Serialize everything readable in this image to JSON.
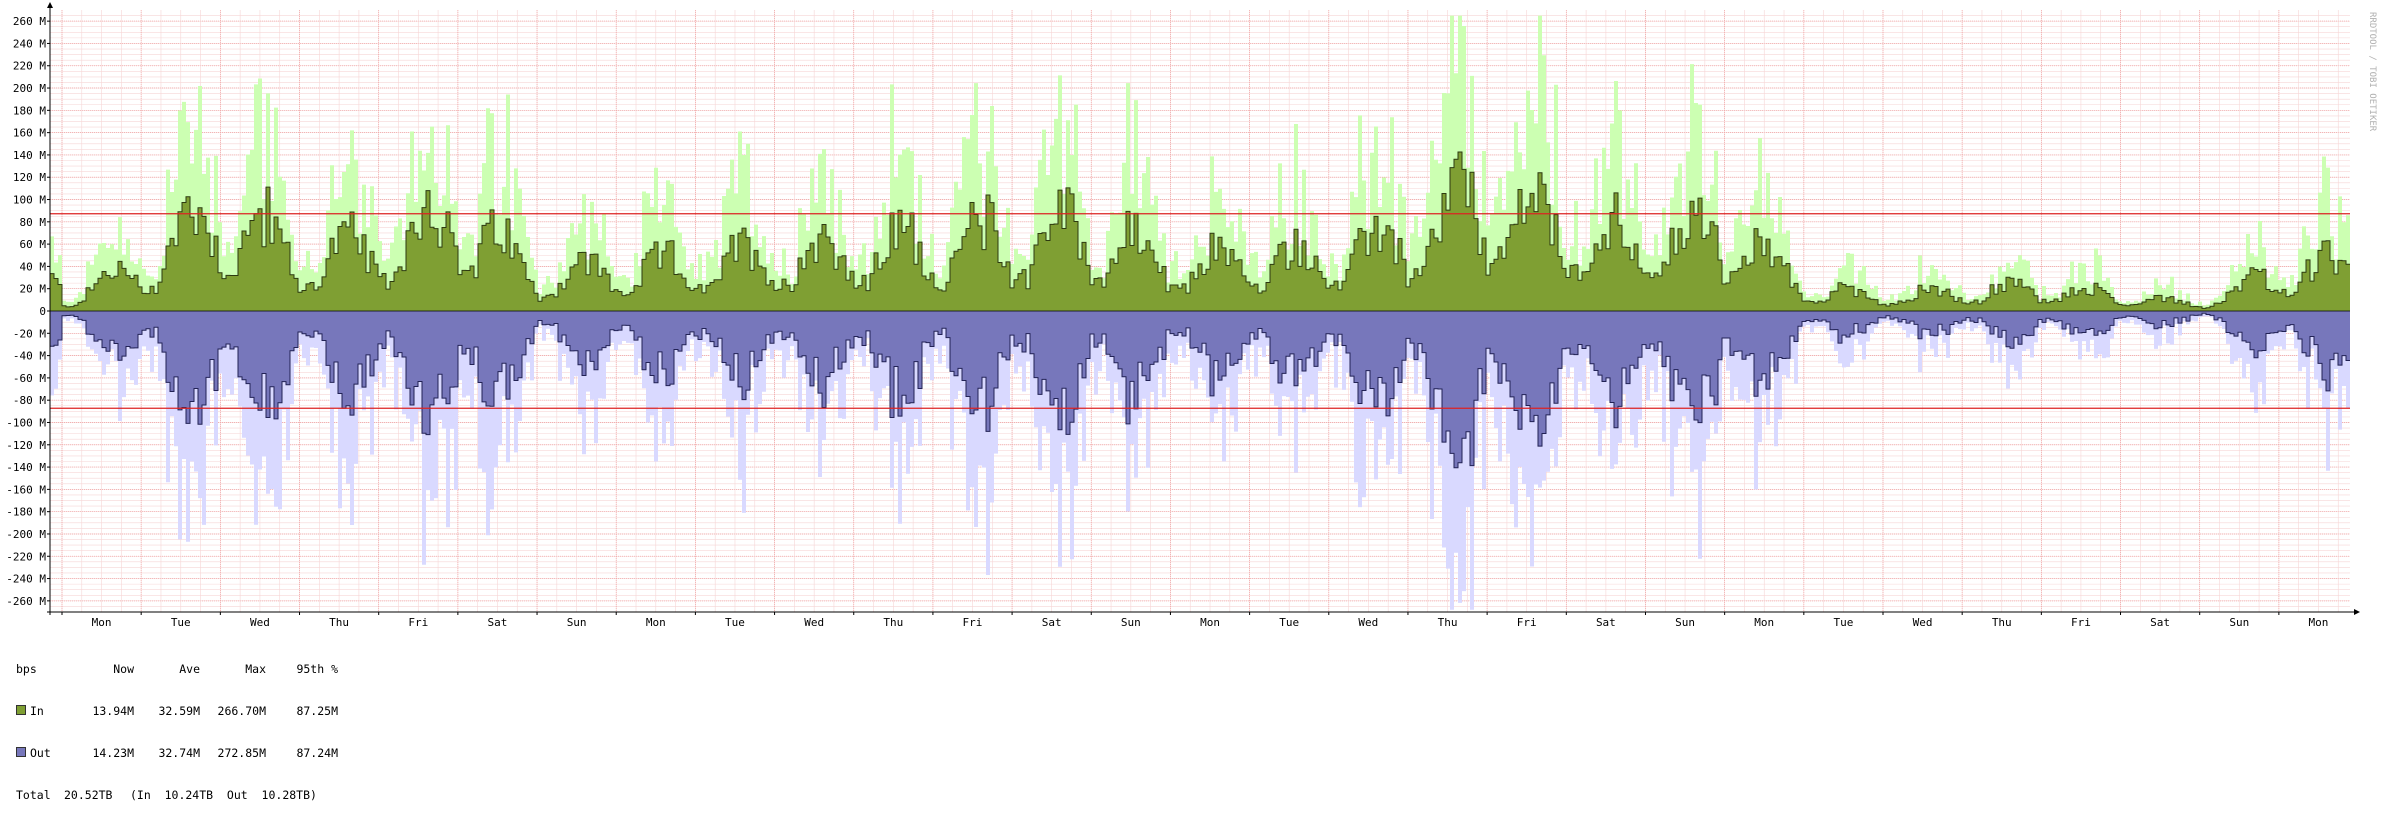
{
  "watermark": "RRDTOOL / TOBI OETIKER",
  "colors": {
    "in_fill": "#7f9f33",
    "in_line": "#2d3a10",
    "in_max": "#ccffb2",
    "out_fill": "#7777bb",
    "out_line": "#222255",
    "out_max": "#d9d9ff",
    "threshold": "#dd2222",
    "grid_major": "#f0a0a0",
    "grid_minor": "#f6d6d6"
  },
  "chart_data": {
    "type": "area",
    "title": "",
    "xlabel": "",
    "ylabel": "",
    "unit": "bps",
    "ylim": [
      -270,
      270
    ],
    "y_ticks": [
      {
        "v": 260,
        "label": "260 M"
      },
      {
        "v": 240,
        "label": "240 M"
      },
      {
        "v": 220,
        "label": "220 M"
      },
      {
        "v": 200,
        "label": "200 M"
      },
      {
        "v": 180,
        "label": "180 M"
      },
      {
        "v": 160,
        "label": "160 M"
      },
      {
        "v": 140,
        "label": "140 M"
      },
      {
        "v": 120,
        "label": "120 M"
      },
      {
        "v": 100,
        "label": "100 M"
      },
      {
        "v": 80,
        "label": "80 M"
      },
      {
        "v": 60,
        "label": "60 M"
      },
      {
        "v": 40,
        "label": "40 M"
      },
      {
        "v": 20,
        "label": "20 M"
      },
      {
        "v": 0,
        "label": "0"
      },
      {
        "v": -20,
        "label": "-20 M"
      },
      {
        "v": -40,
        "label": "-40 M"
      },
      {
        "v": -60,
        "label": "-60 M"
      },
      {
        "v": -80,
        "label": "-80 M"
      },
      {
        "v": -100,
        "label": "-100 M"
      },
      {
        "v": -120,
        "label": "-120 M"
      },
      {
        "v": -140,
        "label": "-140 M"
      },
      {
        "v": -160,
        "label": "-160 M"
      },
      {
        "v": -180,
        "label": "-180 M"
      },
      {
        "v": -200,
        "label": "-200 M"
      },
      {
        "v": -220,
        "label": "-220 M"
      },
      {
        "v": -240,
        "label": "-240 M"
      },
      {
        "v": -260,
        "label": "-260 M"
      }
    ],
    "day_labels": [
      "Mon",
      "Tue",
      "Wed",
      "Thu",
      "Fri",
      "Sat",
      "Sun",
      "Mon",
      "Tue",
      "Wed",
      "Thu",
      "Fri",
      "Sat",
      "Sun",
      "Mon",
      "Tue",
      "Wed",
      "Thu",
      "Fri",
      "Sat",
      "Sun",
      "Mon",
      "Tue",
      "Wed",
      "Thu",
      "Fri",
      "Sat",
      "Sun",
      "Mon"
    ],
    "threshold": 87.25,
    "daily_peaks_in": [
      12,
      60,
      140,
      70,
      85,
      130,
      45,
      55,
      60,
      75,
      80,
      90,
      100,
      110,
      60,
      70,
      70,
      100,
      150,
      110,
      90,
      115,
      30,
      20,
      25,
      30,
      20,
      10,
      50,
      60,
      55,
      40,
      30
    ],
    "daily_peaks_out": [
      12,
      60,
      140,
      70,
      85,
      140,
      45,
      55,
      60,
      75,
      80,
      90,
      100,
      110,
      60,
      70,
      70,
      110,
      155,
      110,
      90,
      115,
      30,
      20,
      25,
      30,
      20,
      10,
      50,
      60,
      55,
      40,
      30
    ],
    "series": [
      {
        "name": "In",
        "now": "13.94M",
        "ave": "32.59M",
        "max": "266.70M",
        "p95": "87.25M"
      },
      {
        "name": "Out",
        "now": "14.23M",
        "ave": "32.74M",
        "max": "272.85M",
        "p95": "87.24M"
      }
    ]
  },
  "legend": {
    "header": [
      "bps",
      "Now",
      "Ave",
      "Max",
      "95th %"
    ],
    "rows": [
      {
        "label": "In",
        "now": "13.94M",
        "ave": "32.59M",
        "max": "266.70M",
        "p95": "87.25M"
      },
      {
        "label": "Out",
        "now": "14.23M",
        "ave": "32.74M",
        "max": "272.85M",
        "p95": "87.24M"
      }
    ],
    "total_label": "Total",
    "total_value": "20.52TB",
    "total_detail": "(In  10.24TB  Out  10.28TB)"
  }
}
